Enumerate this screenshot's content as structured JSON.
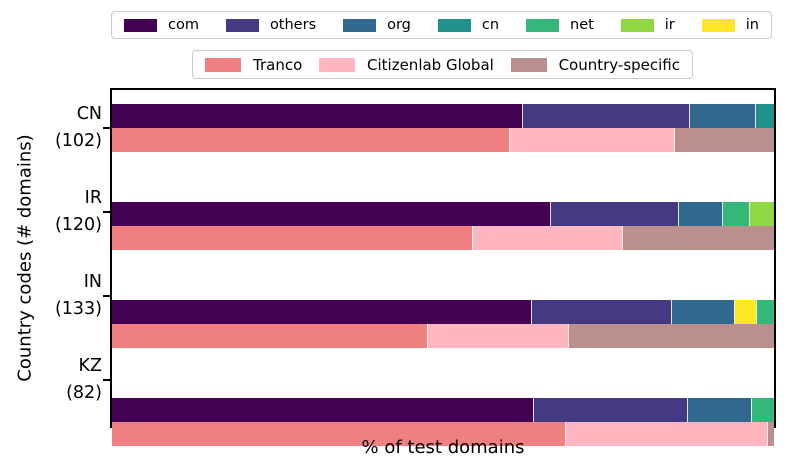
{
  "axes": {
    "xlabel": "% of test domains",
    "ylabel": "Country codes (# domains)"
  },
  "colors": {
    "com": "#440154",
    "others": "#443983",
    "org": "#31688e",
    "cn": "#21918c",
    "net": "#35b779",
    "ir": "#90d743",
    "in": "#fde725",
    "Tranco": "#f08080",
    "Citizenlab Global": "#ffb6c1",
    "Country-specific": "#bc8f8f"
  },
  "chart_data": {
    "type": "bar",
    "orientation": "horizontal",
    "stacked": true,
    "xlabel": "% of test domains",
    "ylabel": "Country codes (# domains)",
    "xlim": [
      0,
      100
    ],
    "x_ticks_visible": false,
    "grid": false,
    "legend_tld": [
      "com",
      "others",
      "org",
      "cn",
      "net",
      "ir",
      "in"
    ],
    "legend_lists": [
      "Tranco",
      "Citizenlab Global",
      "Country-specific"
    ],
    "legend_position": "top, outside plot, two rows",
    "categories": [
      "CN (102)",
      "IR (120)",
      "IN (133)",
      "KZ (82)"
    ],
    "groups": [
      {
        "code": "CN",
        "label_line1": "CN",
        "label_line2": "(102)",
        "num_domains": 102,
        "tld_segments": [
          {
            "name": "com",
            "pct": 61.9
          },
          {
            "name": "others",
            "pct": 25.2
          },
          {
            "name": "org",
            "pct": 10.1
          },
          {
            "name": "cn",
            "pct": 2.8
          }
        ],
        "list_segments": [
          {
            "name": "Tranco",
            "pct": 60.0
          },
          {
            "name": "Citizenlab Global",
            "pct": 24.9
          },
          {
            "name": "Country-specific",
            "pct": 15.1
          }
        ]
      },
      {
        "code": "IR",
        "label_line1": "IR",
        "label_line2": "(120)",
        "num_domains": 120,
        "tld_segments": [
          {
            "name": "com",
            "pct": 66.1
          },
          {
            "name": "others",
            "pct": 19.4
          },
          {
            "name": "org",
            "pct": 6.6
          },
          {
            "name": "net",
            "pct": 4.1
          },
          {
            "name": "ir",
            "pct": 3.8
          }
        ],
        "list_segments": [
          {
            "name": "Tranco",
            "pct": 54.4
          },
          {
            "name": "Citizenlab Global",
            "pct": 22.7
          },
          {
            "name": "Country-specific",
            "pct": 22.9
          }
        ]
      },
      {
        "code": "IN",
        "label_line1": "IN",
        "label_line2": "(133)",
        "num_domains": 133,
        "tld_segments": [
          {
            "name": "com",
            "pct": 63.3
          },
          {
            "name": "others",
            "pct": 21.2
          },
          {
            "name": "org",
            "pct": 9.5
          },
          {
            "name": "in",
            "pct": 3.3
          },
          {
            "name": "net",
            "pct": 2.7
          }
        ],
        "list_segments": [
          {
            "name": "Tranco",
            "pct": 47.6
          },
          {
            "name": "Citizenlab Global",
            "pct": 21.3
          },
          {
            "name": "Country-specific",
            "pct": 31.1
          }
        ]
      },
      {
        "code": "KZ",
        "label_line1": "KZ",
        "label_line2": "(82)",
        "num_domains": 82,
        "tld_segments": [
          {
            "name": "com",
            "pct": 63.6
          },
          {
            "name": "others",
            "pct": 23.3
          },
          {
            "name": "org",
            "pct": 9.6
          },
          {
            "name": "net",
            "pct": 3.5
          }
        ],
        "list_segments": [
          {
            "name": "Tranco",
            "pct": 68.4
          },
          {
            "name": "Citizenlab Global",
            "pct": 30.5
          },
          {
            "name": "Country-specific",
            "pct": 1.1
          }
        ]
      }
    ]
  }
}
